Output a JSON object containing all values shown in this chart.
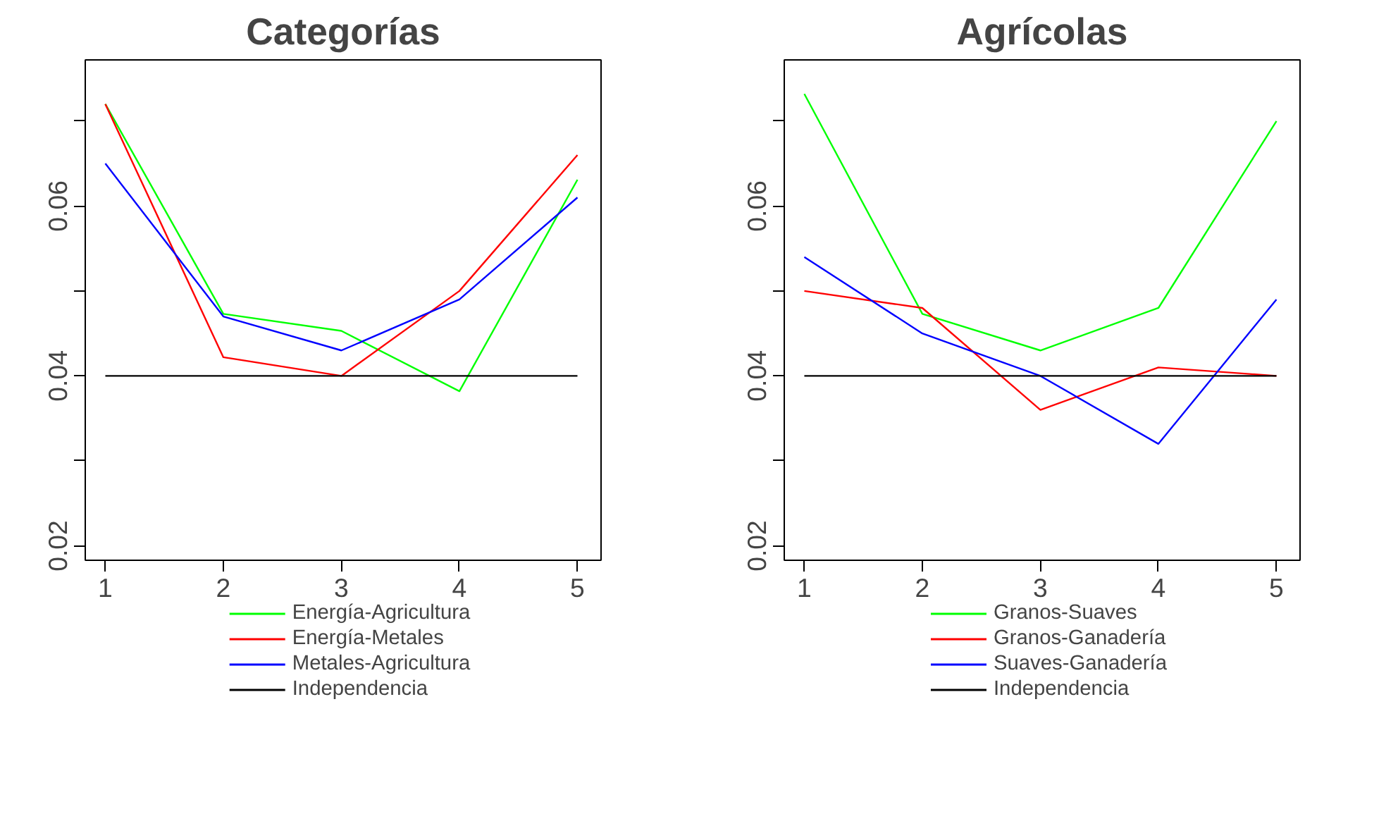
{
  "chart_data": [
    {
      "type": "line",
      "title": "Categorías",
      "x": [
        1,
        2,
        3,
        4,
        5
      ],
      "xlim": [
        0.83,
        5.2
      ],
      "xticks": [
        1,
        2,
        3,
        4,
        5
      ],
      "ylim": [
        0.0183,
        0.0772
      ],
      "yticks": [
        0.02,
        {
          "value": 0.03,
          "label": null
        },
        0.04,
        {
          "value": 0.05,
          "label": null
        },
        0.06,
        {
          "value": 0.07,
          "label": null
        }
      ],
      "grid": false,
      "legend": "bottom",
      "marker": "none",
      "line_style": "solid",
      "series": [
        {
          "name": "Energía-Agricultura",
          "color": "#00ff00",
          "values": [
            0.072,
            0.0473,
            0.0453,
            0.0382,
            0.0631
          ]
        },
        {
          "name": "Energía-Metales",
          "color": "#ff0000",
          "values": [
            0.072,
            0.0422,
            0.04,
            0.05,
            0.066
          ]
        },
        {
          "name": "Metales-Agricultura",
          "color": "#0000ff",
          "values": [
            0.065,
            0.047,
            0.043,
            0.049,
            0.061
          ]
        },
        {
          "name": "Independencia",
          "color": "#000000",
          "values": [
            0.04,
            0.04,
            0.04,
            0.04,
            0.04
          ]
        }
      ]
    },
    {
      "type": "line",
      "title": "Agrícolas",
      "x": [
        1,
        2,
        3,
        4,
        5
      ],
      "xlim": [
        0.83,
        5.2
      ],
      "xticks": [
        1,
        2,
        3,
        4,
        5
      ],
      "ylim": [
        0.0183,
        0.0772
      ],
      "yticks": [
        0.02,
        {
          "value": 0.03,
          "label": null
        },
        0.04,
        {
          "value": 0.05,
          "label": null
        },
        0.06,
        {
          "value": 0.07,
          "label": null
        }
      ],
      "grid": false,
      "legend": "bottom",
      "marker": "none",
      "line_style": "solid",
      "series": [
        {
          "name": "Granos-Suaves",
          "color": "#00ff00",
          "values": [
            0.0732,
            0.0473,
            0.043,
            0.048,
            0.07
          ]
        },
        {
          "name": "Granos-Ganadería",
          "color": "#ff0000",
          "values": [
            0.05,
            0.048,
            0.036,
            0.041,
            0.04
          ]
        },
        {
          "name": "Suaves-Ganadería",
          "color": "#0000ff",
          "values": [
            0.054,
            0.045,
            0.04,
            0.032,
            0.049
          ]
        },
        {
          "name": "Independencia",
          "color": "#000000",
          "values": [
            0.04,
            0.04,
            0.04,
            0.04,
            0.04
          ]
        }
      ]
    }
  ]
}
